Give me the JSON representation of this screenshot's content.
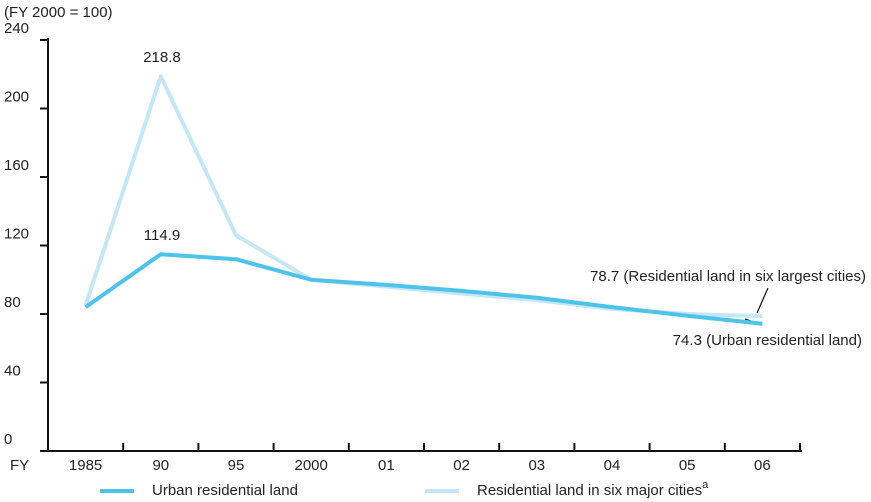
{
  "chart_data": {
    "type": "line",
    "y_axis_label": "(FY 2000 = 100)",
    "x_axis_label": "FY",
    "categories": [
      "1985",
      "90",
      "95",
      "2000",
      "01",
      "02",
      "03",
      "04",
      "05",
      "06"
    ],
    "series": [
      {
        "name": "Residential land in six major cities",
        "name_superscript": "a",
        "color": "#c5e6f5",
        "values": [
          85,
          218.8,
          126,
          100,
          96,
          92,
          88,
          83,
          80,
          78.7
        ]
      },
      {
        "name": "Urban residential land",
        "color": "#4ec3ea",
        "values": [
          84,
          114.9,
          112,
          100,
          97,
          93.5,
          89.5,
          84,
          79,
          74.3
        ]
      }
    ],
    "annotations": [
      "218.8",
      "114.9",
      "78.7 (Residential land in six largest cities)",
      "74.3 (Urban residential land)"
    ],
    "ylim": [
      0,
      240
    ],
    "yticks": [
      0,
      40,
      80,
      120,
      160,
      200,
      240
    ],
    "grid": false
  }
}
